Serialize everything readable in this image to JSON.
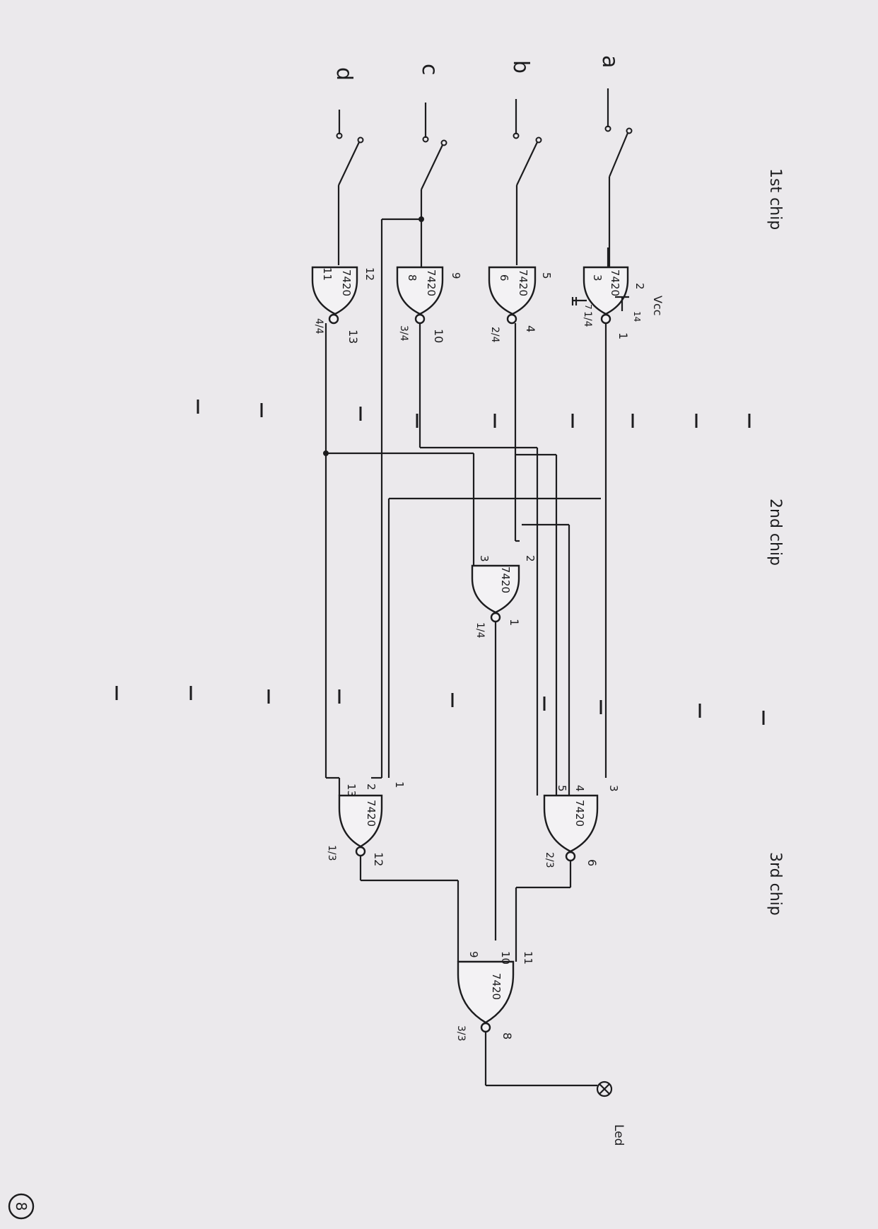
{
  "page_number": "8",
  "sections": {
    "chip1": "1st chip",
    "chip2": "2nd chip",
    "chip3": "3rd chip"
  },
  "power": {
    "vcc": "Vcc",
    "vcc_pin": "14",
    "gnd_pin": "7"
  },
  "inputs": [
    "a",
    "b",
    "c",
    "d"
  ],
  "gates": {
    "g1a": {
      "part": "7420",
      "in_pins": [
        "3",
        "2"
      ],
      "out_pin": "1",
      "unit": "1/4"
    },
    "g1b": {
      "part": "7420",
      "in_pins": [
        "6",
        "5"
      ],
      "out_pin": "4",
      "unit": "2/4"
    },
    "g1c": {
      "part": "7420",
      "in_pins": [
        "8",
        "9"
      ],
      "out_pin": "10",
      "unit": "3/4"
    },
    "g1d": {
      "part": "7420",
      "in_pins": [
        "11",
        "12"
      ],
      "out_pin": "13",
      "unit": "4/4"
    },
    "g2": {
      "part": "7420",
      "in_pins": [
        "3",
        "2"
      ],
      "out_pin": "1",
      "unit": "1/4"
    },
    "g3a": {
      "part": "7420",
      "in_pins": [
        "3",
        "4",
        "5"
      ],
      "out_pin": "6",
      "unit": "2/3"
    },
    "g3b": {
      "part": "7420",
      "in_pins": [
        "1",
        "2",
        "13"
      ],
      "out_pin": "12",
      "unit": "1/3"
    },
    "g3c": {
      "part": "7420",
      "in_pins": [
        "11",
        "10",
        "9"
      ],
      "out_pin": "8",
      "unit": "3/3"
    }
  },
  "output": {
    "label": "Led"
  }
}
